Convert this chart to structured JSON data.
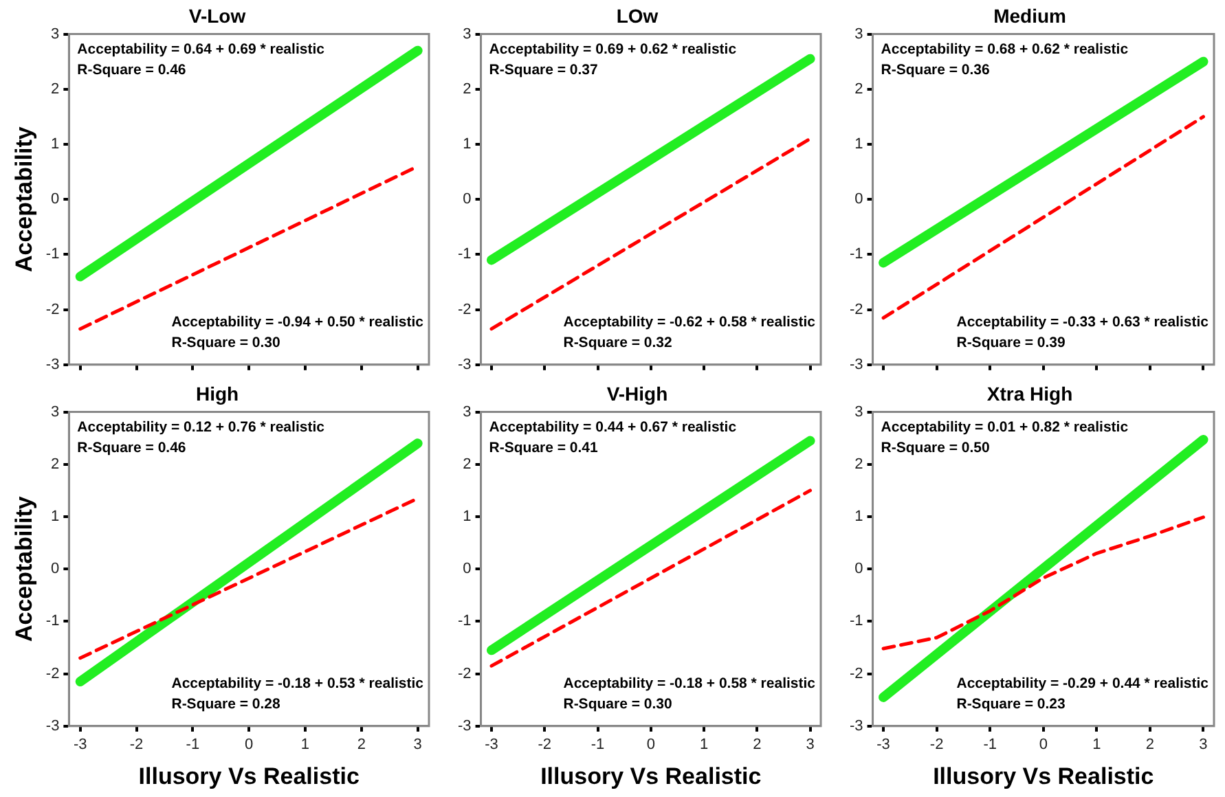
{
  "chart_data": [
    {
      "type": "line",
      "title": "V-Low",
      "ylabel": "Acceptability",
      "xlim": [
        -3.2,
        3.2
      ],
      "ylim": [
        -3,
        3
      ],
      "xticks": [
        -3,
        -2,
        -1,
        0,
        1,
        2,
        3
      ],
      "yticks": [
        -3,
        -2,
        -1,
        0,
        1,
        2,
        3
      ],
      "tick_labels": "y",
      "grid": false,
      "legend": false,
      "marker": "none",
      "annotations": [
        "Acceptability = 0.64 + 0.69 * realistic",
        "R-Square = 0.46",
        "Acceptability = -0.94 + 0.50 * realistic",
        "R-Square = 0.30"
      ],
      "series": [
        {
          "color": "#22ee22",
          "line_style": "solid",
          "x": [
            -3,
            3
          ],
          "values": [
            -1.4,
            2.7
          ]
        },
        {
          "color": "#ff0000",
          "line_style": "dashed",
          "x": [
            -3,
            3
          ],
          "values": [
            -2.35,
            0.6
          ]
        }
      ]
    },
    {
      "type": "line",
      "title": "LOw",
      "xlim": [
        -3.2,
        3.2
      ],
      "ylim": [
        -3,
        3
      ],
      "xticks": [
        -3,
        -2,
        -1,
        0,
        1,
        2,
        3
      ],
      "yticks": [
        -3,
        -2,
        -1,
        0,
        1,
        2,
        3
      ],
      "tick_labels": "y",
      "grid": false,
      "legend": false,
      "marker": "none",
      "annotations": [
        "Acceptability = 0.69 + 0.62 * realistic",
        "R-Square = 0.37",
        "Acceptability = -0.62 + 0.58 * realistic",
        "R-Square = 0.32"
      ],
      "series": [
        {
          "color": "#22ee22",
          "line_style": "solid",
          "x": [
            -3,
            3
          ],
          "values": [
            -1.1,
            2.55
          ]
        },
        {
          "color": "#ff0000",
          "line_style": "dashed",
          "x": [
            -3,
            3
          ],
          "values": [
            -2.35,
            1.1
          ]
        }
      ]
    },
    {
      "type": "line",
      "title": "Medium",
      "xlim": [
        -3.2,
        3.2
      ],
      "ylim": [
        -3,
        3
      ],
      "xticks": [
        -3,
        -2,
        -1,
        0,
        1,
        2,
        3
      ],
      "yticks": [
        -3,
        -2,
        -1,
        0,
        1,
        2,
        3
      ],
      "tick_labels": "y",
      "grid": false,
      "legend": false,
      "marker": "none",
      "annotations": [
        "Acceptability = 0.68 + 0.62 * realistic",
        "R-Square = 0.36",
        "Acceptability = -0.33 + 0.63 * realistic",
        "R-Square = 0.39"
      ],
      "series": [
        {
          "color": "#22ee22",
          "line_style": "solid",
          "x": [
            -3,
            3
          ],
          "values": [
            -1.15,
            2.5
          ]
        },
        {
          "color": "#ff0000",
          "line_style": "dashed",
          "x": [
            -3,
            3
          ],
          "values": [
            -2.15,
            1.5
          ]
        }
      ]
    },
    {
      "type": "line",
      "title": "High",
      "xlabel": "Illusory Vs Realistic",
      "ylabel": "Acceptability",
      "xlim": [
        -3.2,
        3.2
      ],
      "ylim": [
        -3,
        3
      ],
      "xticks": [
        -3,
        -2,
        -1,
        0,
        1,
        2,
        3
      ],
      "yticks": [
        -3,
        -2,
        -1,
        0,
        1,
        2,
        3
      ],
      "grid": false,
      "legend": false,
      "marker": "none",
      "annotations": [
        "Acceptability = 0.12 + 0.76 * realistic",
        "R-Square = 0.46",
        "Acceptability = -0.18 + 0.53 * realistic",
        "R-Square = 0.28"
      ],
      "series": [
        {
          "color": "#22ee22",
          "line_style": "solid",
          "x": [
            -3,
            3
          ],
          "values": [
            -2.15,
            2.4
          ]
        },
        {
          "color": "#ff0000",
          "line_style": "dashed",
          "x": [
            -3,
            3
          ],
          "values": [
            -1.7,
            1.35
          ]
        }
      ]
    },
    {
      "type": "line",
      "title": "V-High",
      "xlabel": "Illusory Vs Realistic",
      "xlim": [
        -3.2,
        3.2
      ],
      "ylim": [
        -3,
        3
      ],
      "xticks": [
        -3,
        -2,
        -1,
        0,
        1,
        2,
        3
      ],
      "yticks": [
        -3,
        -2,
        -1,
        0,
        1,
        2,
        3
      ],
      "grid": false,
      "legend": false,
      "marker": "none",
      "annotations": [
        "Acceptability = 0.44 + 0.67 * realistic",
        "R-Square = 0.41",
        "Acceptability = -0.18 + 0.58 * realistic",
        "R-Square = 0.30"
      ],
      "series": [
        {
          "color": "#22ee22",
          "line_style": "solid",
          "x": [
            -3,
            3
          ],
          "values": [
            -1.55,
            2.45
          ]
        },
        {
          "color": "#ff0000",
          "line_style": "dashed",
          "x": [
            -3,
            3
          ],
          "values": [
            -1.85,
            1.5
          ]
        }
      ]
    },
    {
      "type": "line",
      "title": "Xtra High",
      "xlabel": "Illusory Vs Realistic",
      "xlim": [
        -3.2,
        3.2
      ],
      "ylim": [
        -3,
        3
      ],
      "xticks": [
        -3,
        -2,
        -1,
        0,
        1,
        2,
        3
      ],
      "yticks": [
        -3,
        -2,
        -1,
        0,
        1,
        2,
        3
      ],
      "grid": false,
      "legend": false,
      "marker": "none",
      "annotations": [
        "Acceptability = 0.01 + 0.82 * realistic",
        "R-Square = 0.50",
        "Acceptability = -0.29 + 0.44 * realistic",
        "R-Square = 0.23"
      ],
      "series": [
        {
          "color": "#22ee22",
          "line_style": "solid",
          "x": [
            -3,
            3
          ],
          "values": [
            -2.45,
            2.47
          ]
        },
        {
          "color": "#ff0000",
          "line_style": "dashed",
          "x": [
            -3,
            -2,
            -1,
            0,
            1,
            2,
            3
          ],
          "values": [
            -1.52,
            -1.31,
            -0.8,
            -0.17,
            0.3,
            0.63,
            0.99
          ]
        }
      ]
    }
  ]
}
